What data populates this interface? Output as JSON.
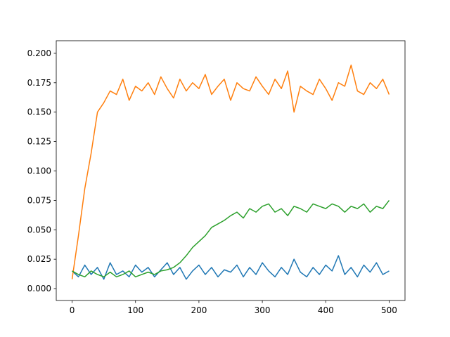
{
  "chart_data": {
    "type": "line",
    "x": [
      0,
      10,
      20,
      30,
      40,
      50,
      60,
      70,
      80,
      90,
      100,
      110,
      120,
      130,
      140,
      150,
      160,
      170,
      180,
      190,
      200,
      210,
      220,
      230,
      240,
      250,
      260,
      270,
      280,
      290,
      300,
      310,
      320,
      330,
      340,
      350,
      360,
      370,
      380,
      390,
      400,
      410,
      420,
      430,
      440,
      450,
      460,
      470,
      480,
      490,
      500
    ],
    "series": [
      {
        "color": "#1f77b4",
        "values": [
          0.015,
          0.01,
          0.02,
          0.012,
          0.018,
          0.008,
          0.022,
          0.012,
          0.015,
          0.01,
          0.02,
          0.014,
          0.018,
          0.01,
          0.016,
          0.022,
          0.012,
          0.018,
          0.008,
          0.015,
          0.02,
          0.012,
          0.018,
          0.01,
          0.016,
          0.014,
          0.02,
          0.01,
          0.018,
          0.012,
          0.022,
          0.015,
          0.01,
          0.018,
          0.012,
          0.025,
          0.014,
          0.01,
          0.018,
          0.012,
          0.02,
          0.015,
          0.028,
          0.012,
          0.018,
          0.01,
          0.02,
          0.014,
          0.022,
          0.012,
          0.015
        ]
      },
      {
        "color": "#ff7f0e",
        "values": [
          0.008,
          0.045,
          0.085,
          0.115,
          0.15,
          0.158,
          0.168,
          0.165,
          0.178,
          0.16,
          0.172,
          0.168,
          0.175,
          0.165,
          0.18,
          0.17,
          0.162,
          0.178,
          0.168,
          0.175,
          0.17,
          0.182,
          0.165,
          0.172,
          0.178,
          0.16,
          0.175,
          0.17,
          0.168,
          0.18,
          0.172,
          0.165,
          0.178,
          0.17,
          0.185,
          0.15,
          0.172,
          0.168,
          0.165,
          0.178,
          0.17,
          0.16,
          0.175,
          0.172,
          0.19,
          0.168,
          0.165,
          0.175,
          0.17,
          0.178,
          0.165
        ]
      },
      {
        "color": "#2ca02c",
        "values": [
          0.015,
          0.012,
          0.01,
          0.015,
          0.012,
          0.01,
          0.014,
          0.01,
          0.012,
          0.015,
          0.01,
          0.012,
          0.014,
          0.012,
          0.015,
          0.016,
          0.018,
          0.022,
          0.028,
          0.035,
          0.04,
          0.045,
          0.052,
          0.055,
          0.058,
          0.062,
          0.065,
          0.06,
          0.068,
          0.065,
          0.07,
          0.072,
          0.065,
          0.068,
          0.062,
          0.07,
          0.068,
          0.065,
          0.072,
          0.07,
          0.068,
          0.072,
          0.07,
          0.065,
          0.07,
          0.068,
          0.072,
          0.065,
          0.07,
          0.068,
          0.075
        ]
      }
    ],
    "xlim": [
      -25,
      525
    ],
    "xticks": [
      0,
      100,
      200,
      300,
      400,
      500
    ],
    "ylim": [
      -0.0101,
      0.2107
    ],
    "yticks": [
      {
        "value": 0,
        "label": "0.000"
      },
      0.025,
      {
        "value": 0.05,
        "label": "0.050"
      },
      0.075,
      {
        "value": 0.1,
        "label": "0.100"
      },
      0.125,
      {
        "value": 0.15,
        "label": "0.150"
      },
      0.175,
      {
        "value": 0.2,
        "label": "0.200"
      }
    ],
    "grid": false
  }
}
